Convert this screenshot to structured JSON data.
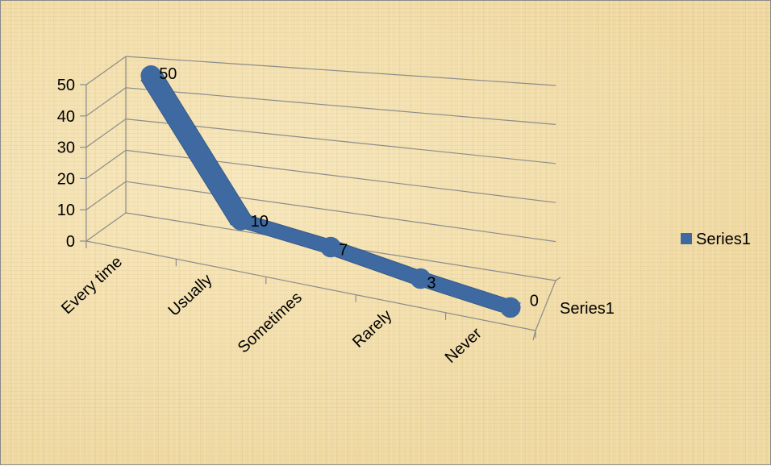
{
  "chart_data": {
    "type": "line",
    "style": "3d-line",
    "categories": [
      "Every time",
      "Usually",
      "Sometimes",
      "Rarely",
      "Never"
    ],
    "series": [
      {
        "name": "Series1",
        "values": [
          50,
          10,
          7,
          3,
          0
        ]
      }
    ],
    "y_ticks": [
      0,
      10,
      20,
      30,
      40,
      50
    ],
    "ylim": [
      0,
      50
    ],
    "depth_axis_label": "Series1",
    "grid": true,
    "legend": {
      "position": "right",
      "entries": [
        "Series1"
      ]
    },
    "colors": {
      "series": "#3f6aa1",
      "grid": "#8c8c8c",
      "background": "#f1dca6"
    }
  }
}
